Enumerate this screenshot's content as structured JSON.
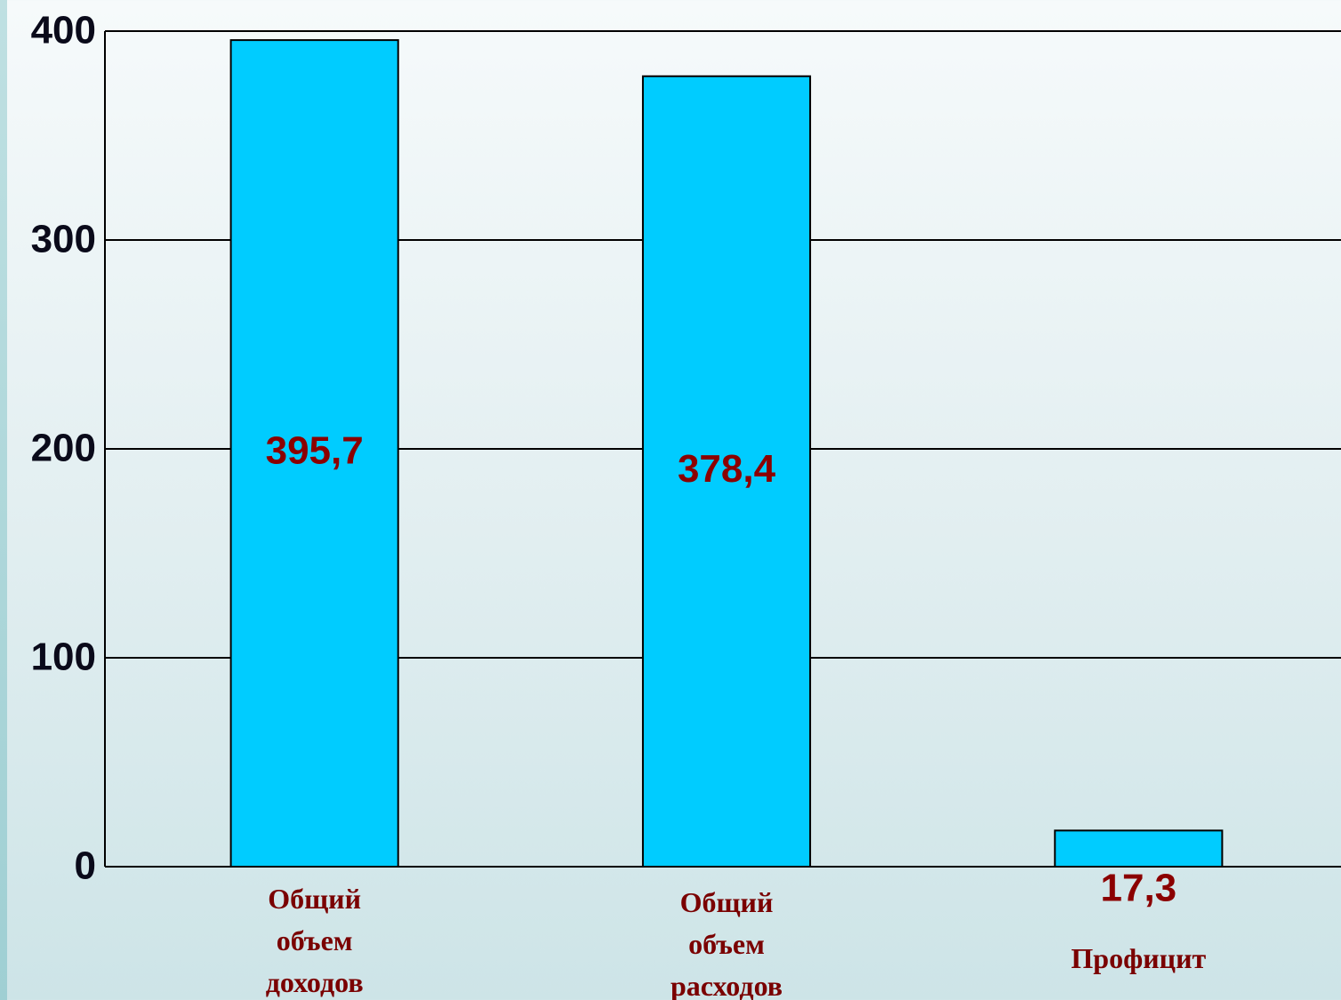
{
  "chart_data": {
    "type": "bar",
    "categories": [
      "Общий объем доходов",
      "Общий объем расходов",
      "Профицит"
    ],
    "values": [
      395.7,
      378.4,
      17.3
    ],
    "value_labels": [
      "395,7",
      "378,4",
      "17,3"
    ],
    "color": "#00ccff",
    "ylim": [
      0,
      400
    ],
    "yticks": [
      0,
      100,
      200,
      300,
      400
    ],
    "grid": true
  }
}
